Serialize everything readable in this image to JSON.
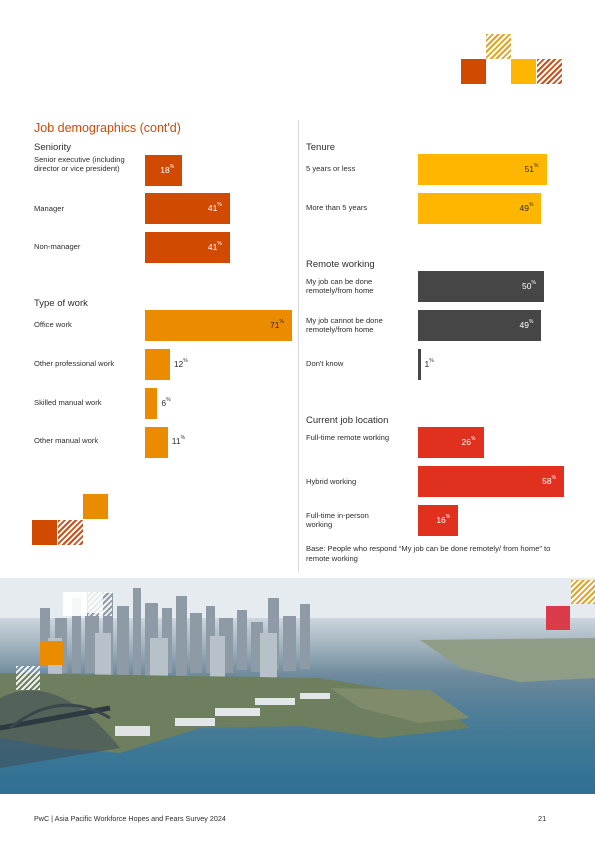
{
  "title": "Job demographics (cont'd)",
  "left": {
    "seniority": {
      "heading": "Seniority",
      "items": [
        {
          "label": "Senior executive (including director or vice president)",
          "value": 18
        },
        {
          "label": "Manager",
          "value": 41
        },
        {
          "label": "Non-manager",
          "value": 41
        }
      ]
    },
    "type_of_work": {
      "heading": "Type of work",
      "items": [
        {
          "label": "Office work",
          "value": 71
        },
        {
          "label": "Other professional work",
          "value": 12
        },
        {
          "label": "Skilled manual work",
          "value": 6
        },
        {
          "label": "Other manual work",
          "value": 11
        }
      ]
    }
  },
  "right": {
    "tenure": {
      "heading": "Tenure",
      "items": [
        {
          "label": "5 years or less",
          "value": 51
        },
        {
          "label": "More than 5 years",
          "value": 49
        }
      ]
    },
    "remote_working": {
      "heading": "Remote working",
      "items": [
        {
          "label": "My job can be done remotely/from home",
          "value": 50
        },
        {
          "label": "My job cannot be done remotely/from home",
          "value": 49
        },
        {
          "label": "Don't know",
          "value": 1
        }
      ]
    },
    "current_job_location": {
      "heading": "Current job location",
      "items": [
        {
          "label": "Full-time remote working",
          "value": 26
        },
        {
          "label": "Hybrid working",
          "value": 58
        },
        {
          "label": "Full-time in-person working",
          "value": 16
        }
      ]
    }
  },
  "percent_symbol": "%",
  "base_note": "Base: People who respond “My job can be done remotely/ from home” to remote working",
  "footer": "PwC | Asia Pacific Workforce Hopes and Fears Survey 2024",
  "page_number": "21",
  "colors": {
    "seniority": "#d04a02",
    "type_of_work": "#eb8c00",
    "tenure": "#ffb600",
    "remote_working": "#464646",
    "current_job_location": "#e0301e"
  },
  "chart_data": [
    {
      "type": "bar",
      "title": "Seniority",
      "categories": [
        "Senior executive (including director or vice president)",
        "Manager",
        "Non-manager"
      ],
      "values": [
        18,
        41,
        41
      ]
    },
    {
      "type": "bar",
      "title": "Type of work",
      "categories": [
        "Office work",
        "Other professional work",
        "Skilled manual work",
        "Other manual work"
      ],
      "values": [
        71,
        12,
        6,
        11
      ]
    },
    {
      "type": "bar",
      "title": "Tenure",
      "categories": [
        "5 years or less",
        "More than 5 years"
      ],
      "values": [
        51,
        49
      ]
    },
    {
      "type": "bar",
      "title": "Remote working",
      "categories": [
        "My job can be done remotely/from home",
        "My job cannot be done remotely/from home",
        "Don't know"
      ],
      "values": [
        50,
        49,
        1
      ]
    },
    {
      "type": "bar",
      "title": "Current job location",
      "categories": [
        "Full-time remote working",
        "Hybrid working",
        "Full-time in-person working"
      ],
      "values": [
        26,
        58,
        16
      ]
    }
  ]
}
